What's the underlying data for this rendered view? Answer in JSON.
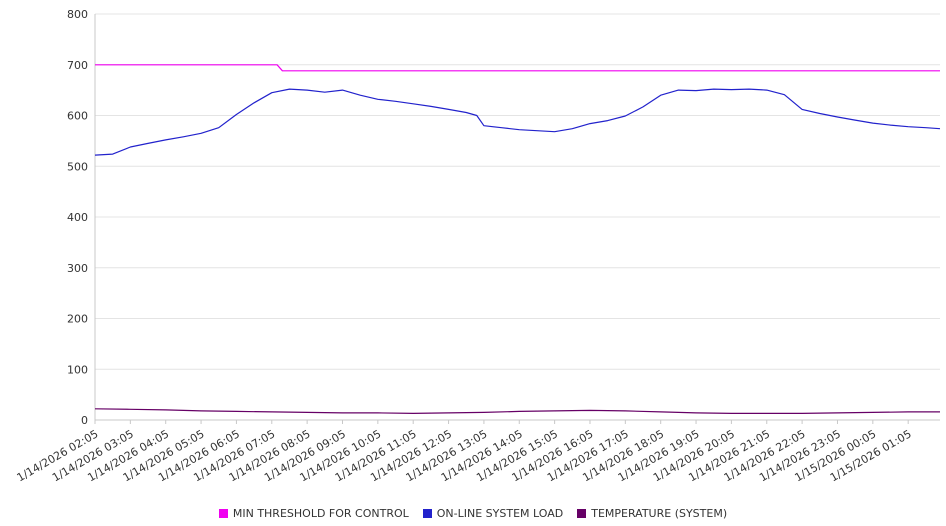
{
  "chart_data": {
    "type": "line",
    "title": "",
    "xlabel": "",
    "ylabel": "",
    "grid": "horizontal",
    "legend_position": "bottom",
    "x_range": [
      0,
      23.9
    ],
    "y_range": [
      0,
      800
    ],
    "y_ticks": [
      0,
      100,
      200,
      300,
      400,
      500,
      600,
      700,
      800
    ],
    "x_tick_positions": [
      0,
      1,
      2,
      3,
      4,
      5,
      6,
      7,
      8,
      9,
      10,
      11,
      12,
      13,
      14,
      15,
      16,
      17,
      18,
      19,
      20,
      21,
      22,
      23
    ],
    "x_tick_labels": [
      "1/14/2026 02:05",
      "1/14/2026 03:05",
      "1/14/2026 04:05",
      "1/14/2026 05:05",
      "1/14/2026 06:05",
      "1/14/2026 07:05",
      "1/14/2026 08:05",
      "1/14/2026 09:05",
      "1/14/2026 10:05",
      "1/14/2026 11:05",
      "1/14/2026 12:05",
      "1/14/2026 13:05",
      "1/14/2026 14:05",
      "1/14/2026 15:05",
      "1/14/2026 16:05",
      "1/14/2026 17:05",
      "1/14/2026 18:05",
      "1/14/2026 19:05",
      "1/14/2026 20:05",
      "1/14/2026 21:05",
      "1/14/2026 22:05",
      "1/14/2026 23:05",
      "1/15/2026 00:05",
      "1/15/2026 01:05"
    ],
    "colors": {
      "grid": "#e4e4e4",
      "axis": "#c8c8c8",
      "text": "#333333"
    },
    "series": [
      {
        "name": "MIN THRESHOLD FOR CONTROL",
        "color": "#f000f0",
        "x": [
          0,
          5.15,
          5.3,
          23.9
        ],
        "values": [
          700,
          700,
          688,
          688
        ]
      },
      {
        "name": "ON-LINE SYSTEM LOAD",
        "color": "#2222cc",
        "x": [
          0,
          0.5,
          1,
          1.5,
          2,
          2.5,
          3,
          3.5,
          4,
          4.5,
          5,
          5.5,
          6,
          6.5,
          7,
          7.5,
          8,
          8.5,
          9,
          9.5,
          10,
          10.5,
          10.8,
          11,
          11.5,
          12,
          12.5,
          13,
          13.5,
          14,
          14.5,
          15,
          15.5,
          16,
          16.5,
          17,
          17.5,
          18,
          18.5,
          19,
          19.5,
          20,
          20.5,
          21,
          21.5,
          22,
          22.5,
          23,
          23.5,
          23.9
        ],
        "values": [
          522,
          524,
          538,
          545,
          552,
          558,
          565,
          576,
          602,
          625,
          645,
          652,
          650,
          646,
          650,
          640,
          632,
          628,
          623,
          618,
          612,
          606,
          600,
          580,
          576,
          572,
          570,
          568,
          574,
          584,
          590,
          599,
          617,
          640,
          650,
          649,
          652,
          651,
          652,
          650,
          641,
          612,
          604,
          597,
          591,
          585,
          581,
          578,
          576,
          574
        ]
      },
      {
        "name": "TEMPERATURE (SYSTEM)",
        "color": "#660066",
        "x": [
          0,
          1,
          2,
          3,
          4,
          5,
          6,
          7,
          8,
          9,
          10,
          11,
          12,
          13,
          14,
          15,
          16,
          17,
          18,
          19,
          20,
          21,
          22,
          23,
          23.9
        ],
        "values": [
          22,
          21,
          20,
          18,
          17,
          16,
          15,
          14,
          14,
          13,
          14,
          15,
          17,
          18,
          19,
          18,
          16,
          14,
          13,
          13,
          13,
          14,
          15,
          16,
          16
        ]
      }
    ]
  }
}
